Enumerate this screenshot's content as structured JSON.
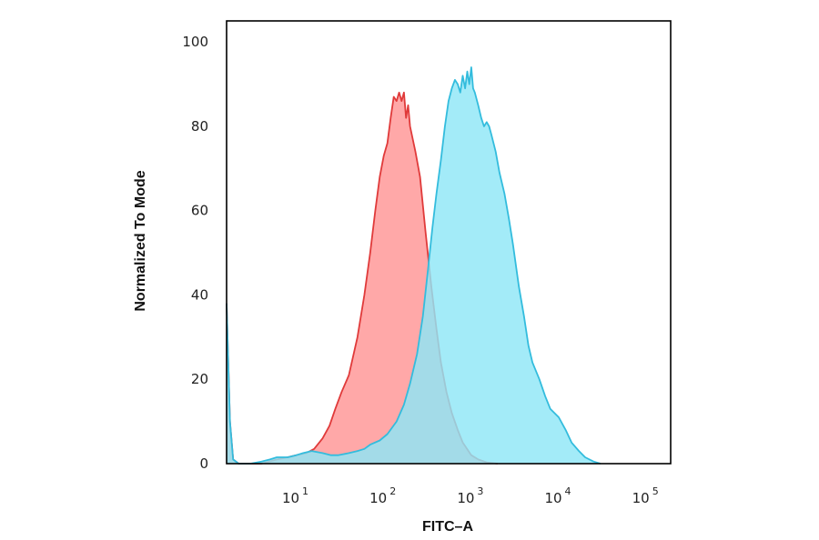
{
  "chart_data": {
    "type": "area",
    "title": "",
    "xlabel": "FITC–A",
    "ylabel": "Normalized To Mode",
    "xscale": "log",
    "xlim": [
      1.6,
      190000
    ],
    "ylim": [
      0,
      105
    ],
    "yticks": [
      0,
      20,
      40,
      60,
      80,
      100
    ],
    "yticklabels": [
      "0",
      "20",
      "40",
      "60",
      "80",
      "100"
    ],
    "xticks": [
      10,
      100,
      1000,
      10000,
      100000
    ],
    "xticklabels": [
      {
        "base": "10",
        "exp": "1"
      },
      {
        "base": "10",
        "exp": "2"
      },
      {
        "base": "10",
        "exp": "3"
      },
      {
        "base": "10",
        "exp": "4"
      },
      {
        "base": "10",
        "exp": "5"
      }
    ],
    "grid": false,
    "legend": false,
    "series": [
      {
        "fill": "#ff9999",
        "stroke": "#e03a3a",
        "fill_opacity": 0.85,
        "points": [
          [
            1.6,
            38
          ],
          [
            1.75,
            10
          ],
          [
            1.9,
            1
          ],
          [
            2.2,
            0
          ],
          [
            4,
            0
          ],
          [
            6,
            1
          ],
          [
            8,
            1.5
          ],
          [
            10,
            2
          ],
          [
            13,
            2.5
          ],
          [
            16,
            3.5
          ],
          [
            20,
            6
          ],
          [
            24,
            9
          ],
          [
            28,
            13
          ],
          [
            33,
            17
          ],
          [
            40,
            21
          ],
          [
            50,
            30
          ],
          [
            60,
            40
          ],
          [
            70,
            50
          ],
          [
            80,
            60
          ],
          [
            90,
            68
          ],
          [
            100,
            73
          ],
          [
            110,
            76
          ],
          [
            120,
            82
          ],
          [
            130,
            87
          ],
          [
            140,
            86
          ],
          [
            150,
            88
          ],
          [
            160,
            86
          ],
          [
            170,
            88
          ],
          [
            180,
            82
          ],
          [
            190,
            85
          ],
          [
            200,
            80
          ],
          [
            230,
            74
          ],
          [
            260,
            68
          ],
          [
            300,
            55
          ],
          [
            350,
            42
          ],
          [
            400,
            32
          ],
          [
            450,
            24
          ],
          [
            520,
            17
          ],
          [
            600,
            12
          ],
          [
            700,
            8
          ],
          [
            800,
            5
          ],
          [
            1000,
            2
          ],
          [
            1200,
            1
          ],
          [
            1500,
            0.3
          ],
          [
            2000,
            0
          ]
        ]
      },
      {
        "fill": "#8fe6f7",
        "stroke": "#33bcdd",
        "fill_opacity": 0.82,
        "points": [
          [
            1.6,
            38
          ],
          [
            1.75,
            10
          ],
          [
            1.9,
            1
          ],
          [
            2.2,
            0
          ],
          [
            3,
            0
          ],
          [
            4,
            0.5
          ],
          [
            5,
            1
          ],
          [
            6,
            1.5
          ],
          [
            8,
            1.5
          ],
          [
            10,
            2
          ],
          [
            12,
            2.5
          ],
          [
            15,
            3
          ],
          [
            20,
            2.5
          ],
          [
            25,
            2
          ],
          [
            30,
            2
          ],
          [
            40,
            2.5
          ],
          [
            50,
            3
          ],
          [
            60,
            3.5
          ],
          [
            70,
            4.5
          ],
          [
            90,
            5.5
          ],
          [
            110,
            7
          ],
          [
            140,
            10
          ],
          [
            170,
            14
          ],
          [
            200,
            19
          ],
          [
            240,
            26
          ],
          [
            280,
            35
          ],
          [
            320,
            46
          ],
          [
            360,
            56
          ],
          [
            400,
            64
          ],
          [
            450,
            72
          ],
          [
            500,
            80
          ],
          [
            550,
            86
          ],
          [
            600,
            89
          ],
          [
            650,
            91
          ],
          [
            700,
            90
          ],
          [
            750,
            88
          ],
          [
            800,
            92
          ],
          [
            850,
            89
          ],
          [
            900,
            93
          ],
          [
            950,
            90
          ],
          [
            1000,
            94
          ],
          [
            1050,
            89
          ],
          [
            1100,
            88
          ],
          [
            1200,
            85
          ],
          [
            1300,
            82
          ],
          [
            1400,
            80
          ],
          [
            1500,
            81
          ],
          [
            1600,
            80
          ],
          [
            1700,
            78
          ],
          [
            1900,
            74
          ],
          [
            2100,
            69
          ],
          [
            2400,
            64
          ],
          [
            2700,
            58
          ],
          [
            3000,
            52
          ],
          [
            3500,
            42
          ],
          [
            4000,
            35
          ],
          [
            4500,
            28
          ],
          [
            5000,
            24
          ],
          [
            6000,
            20
          ],
          [
            7000,
            16
          ],
          [
            8000,
            13
          ],
          [
            10000,
            11
          ],
          [
            12000,
            8
          ],
          [
            14000,
            5
          ],
          [
            17000,
            3
          ],
          [
            20000,
            1.5
          ],
          [
            25000,
            0.5
          ],
          [
            30000,
            0
          ]
        ]
      }
    ]
  }
}
